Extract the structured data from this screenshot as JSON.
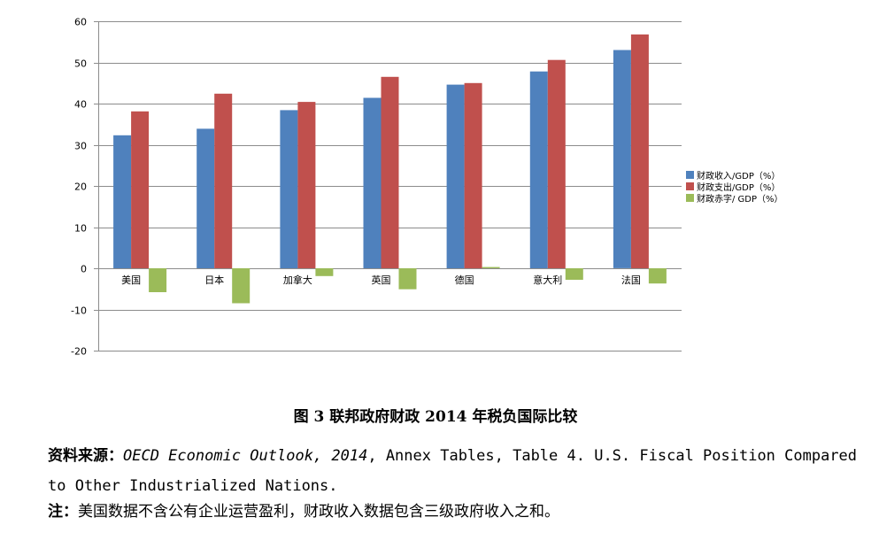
{
  "chart_data": {
    "type": "bar",
    "categories": [
      "美国",
      "日本",
      "加拿大",
      "英国",
      "德国",
      "意大利",
      "法国"
    ],
    "series": [
      {
        "name": "财政收入/GDP（%）",
        "color": "#4f81bd",
        "values": [
          32.3,
          33.9,
          38.4,
          41.4,
          44.6,
          47.8,
          53.0
        ]
      },
      {
        "name": "财政支出/GDP（%）",
        "color": "#c0504d",
        "values": [
          38.1,
          42.4,
          40.4,
          46.5,
          45.0,
          50.6,
          56.8
        ]
      },
      {
        "name": "财政赤字/ GDP（%）",
        "color": "#9bbb59",
        "values": [
          -5.8,
          -8.5,
          -1.9,
          -5.1,
          0.3,
          -2.8,
          -3.7
        ]
      }
    ],
    "yticks": [
      60,
      50,
      40,
      30,
      20,
      10,
      0,
      -10,
      -20
    ],
    "ylim": [
      -20,
      60
    ],
    "grid": true,
    "legend": "right"
  },
  "caption": "图 3  联邦政府财政 2014 年税负国际比较",
  "source": {
    "label": "资料来源：",
    "italic": "OECD Economic Outlook, 2014",
    "rest": ", Annex Tables, Table 4. U.S. Fiscal Position Compared to Other Industrialized Nations."
  },
  "note": {
    "label": "注：",
    "text": "美国数据不含公有企业运营盈利，财政收入数据包含三级政府收入之和。"
  }
}
